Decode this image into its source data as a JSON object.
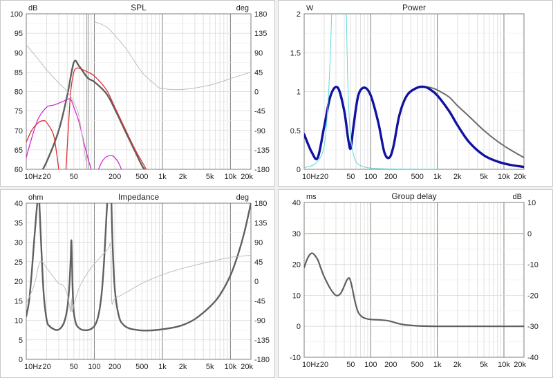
{
  "chart_data": [
    {
      "type": "line",
      "title": "SPL",
      "xscale": "log",
      "xlim": [
        10,
        20000
      ],
      "x_ticks": [
        10,
        20,
        50,
        100,
        200,
        500,
        1000,
        2000,
        5000,
        10000,
        20000
      ],
      "x_tick_labels": [
        "10Hz",
        "20",
        "50",
        "",
        "200",
        "500",
        "1k",
        "2k",
        "5k",
        "10k",
        "20k"
      ],
      "y_unit": "dB",
      "ylim": [
        60,
        100
      ],
      "y_ticks": [
        60,
        65,
        70,
        75,
        80,
        85,
        90,
        95,
        100
      ],
      "y_tick_labels": [
        "60",
        "65",
        "70",
        "75",
        "80",
        "85",
        "90",
        "95",
        "100"
      ],
      "y2_unit": "deg",
      "y2lim": [
        -180,
        180
      ],
      "y2_ticks": [
        -180,
        -135,
        -90,
        -45,
        0,
        45,
        90,
        135,
        180
      ],
      "y2_tick_labels": [
        "-180",
        "-135",
        "-90",
        "-45",
        "0",
        "45",
        "90",
        "135",
        "180"
      ],
      "marker_line_x": 80,
      "grid": true,
      "series": [
        {
          "color": "#606060",
          "width": 2.4,
          "axis": "y",
          "x": [
            15,
            20,
            30,
            40,
            50,
            60,
            80,
            100,
            150,
            200,
            300,
            400,
            500,
            600
          ],
          "y": [
            58,
            62,
            70,
            79,
            87.5,
            86.5,
            83.5,
            82.5,
            79.5,
            75.5,
            69,
            64.5,
            61,
            59
          ]
        },
        {
          "color": "#d93030",
          "width": 1.3,
          "axis": "y",
          "x": [
            38,
            42,
            45,
            50,
            55,
            60,
            70,
            80,
            100,
            150,
            200,
            300,
            400,
            500,
            600
          ],
          "y": [
            59,
            72,
            80,
            85,
            86,
            86,
            85.5,
            85,
            84,
            80.5,
            76,
            69.5,
            65,
            62,
            59.5
          ]
        },
        {
          "color": "#d93030",
          "width": 1.3,
          "axis": "y",
          "x": [
            10,
            12,
            15,
            18,
            20,
            25,
            28,
            30
          ],
          "y": [
            67,
            70,
            72,
            72.5,
            72,
            69,
            64,
            60
          ]
        },
        {
          "color": "#d428d4",
          "width": 1.3,
          "axis": "y",
          "x": [
            10,
            12,
            15,
            20,
            25,
            30,
            35,
            40,
            45,
            50,
            60,
            70,
            80,
            90
          ],
          "y": [
            63,
            68,
            73,
            76,
            76.5,
            77,
            77.5,
            78,
            78,
            76,
            72,
            67,
            63,
            60
          ]
        },
        {
          "color": "#d428d4",
          "width": 1.3,
          "axis": "y",
          "x": [
            115,
            130,
            150,
            180,
            200,
            230,
            250
          ],
          "y": [
            60,
            62,
            63.2,
            63.5,
            63,
            61.5,
            60
          ]
        },
        {
          "color": "#bdbdbd",
          "width": 1.0,
          "axis": "y2",
          "x": [
            10,
            15,
            20,
            30,
            40,
            50,
            60,
            75
          ],
          "y2": [
            108,
            75,
            50,
            20,
            0,
            -25,
            -60,
            -160
          ]
        },
        {
          "color": "#bdbdbd",
          "width": 1.0,
          "axis": "y2",
          "x": [
            100,
            150,
            200,
            300,
            500,
            800,
            1000,
            2000,
            5000,
            10000,
            20000
          ],
          "y2": [
            162,
            150,
            130,
            97,
            45,
            15,
            7,
            5,
            15,
            30,
            45
          ]
        }
      ]
    },
    {
      "type": "line",
      "title": "Power",
      "xscale": "log",
      "xlim": [
        10,
        20000
      ],
      "x_ticks": [
        10,
        20,
        50,
        100,
        200,
        500,
        1000,
        2000,
        5000,
        10000,
        20000
      ],
      "x_tick_labels": [
        "10Hz",
        "20",
        "50",
        "100",
        "200",
        "500",
        "1k",
        "2k",
        "5k",
        "10k",
        "20k"
      ],
      "y_unit": "W",
      "ylim": [
        0,
        2
      ],
      "y_ticks": [
        0,
        0.5,
        1,
        1.5,
        2
      ],
      "y_tick_labels": [
        "0",
        "0.5",
        "1",
        "1.5",
        "2"
      ],
      "grid": true,
      "series": [
        {
          "color": "#6b6b6b",
          "width": 2.0,
          "axis": "y",
          "x": [
            10,
            13,
            16,
            20,
            25,
            32,
            40,
            46,
            50,
            55,
            65,
            80,
            100,
            130,
            160,
            190,
            220,
            270,
            350,
            500,
            650,
            800,
            1000,
            1500,
            2000,
            3000,
            5000,
            8000,
            12000,
            20000
          ],
          "y": [
            0.45,
            0.22,
            0.15,
            0.55,
            0.95,
            1.05,
            0.75,
            0.38,
            0.27,
            0.55,
            0.95,
            1.05,
            0.95,
            0.6,
            0.22,
            0.15,
            0.3,
            0.7,
            0.95,
            1.05,
            1.06,
            1.05,
            1.02,
            0.93,
            0.82,
            0.68,
            0.5,
            0.36,
            0.26,
            0.15
          ]
        },
        {
          "color": "#1212a0",
          "width": 3.4,
          "axis": "y",
          "x": [
            10,
            13,
            16,
            20,
            25,
            32,
            40,
            46,
            50,
            55,
            65,
            80,
            100,
            130,
            160,
            190,
            220,
            270,
            350,
            500,
            650,
            800,
            1000,
            1500,
            2000,
            3000,
            5000,
            8000,
            12000,
            20000
          ],
          "y": [
            0.45,
            0.22,
            0.15,
            0.55,
            0.95,
            1.05,
            0.75,
            0.38,
            0.27,
            0.55,
            0.95,
            1.05,
            0.95,
            0.6,
            0.22,
            0.15,
            0.3,
            0.7,
            0.95,
            1.05,
            1.06,
            1.02,
            0.95,
            0.75,
            0.57,
            0.35,
            0.18,
            0.1,
            0.06,
            0.03
          ]
        },
        {
          "color": "#5ed8d8",
          "width": 1.0,
          "axis": "y",
          "x": [
            10,
            15,
            20,
            23,
            25,
            26
          ],
          "y": [
            0.02,
            0.08,
            0.3,
            0.9,
            1.6,
            2.05
          ]
        },
        {
          "color": "#5ed8d8",
          "width": 1.0,
          "axis": "y",
          "x": [
            43,
            45,
            48,
            52,
            60,
            80,
            120,
            200,
            400,
            1000
          ],
          "y": [
            2.05,
            1.2,
            0.6,
            0.3,
            0.1,
            0.03,
            0.01,
            0.005,
            0.002,
            0.001
          ]
        }
      ]
    },
    {
      "type": "line",
      "title": "Impedance",
      "xscale": "log",
      "xlim": [
        10,
        20000
      ],
      "x_ticks": [
        10,
        20,
        50,
        100,
        200,
        500,
        1000,
        2000,
        5000,
        10000,
        20000
      ],
      "x_tick_labels": [
        "10Hz",
        "20",
        "50",
        "100",
        "200",
        "500",
        "1k",
        "2k",
        "5k",
        "10k",
        "20k"
      ],
      "y_unit": "ohm",
      "ylim": [
        0,
        40
      ],
      "y_ticks": [
        0,
        5,
        10,
        15,
        20,
        25,
        30,
        35,
        40
      ],
      "y_tick_labels": [
        "0",
        "5",
        "10",
        "15",
        "20",
        "25",
        "30",
        "35",
        "40"
      ],
      "y2_unit": "deg",
      "y2lim": [
        -180,
        180
      ],
      "y2_ticks": [
        -180,
        -135,
        -90,
        -45,
        0,
        45,
        90,
        135,
        180
      ],
      "y2_tick_labels": [
        "-180",
        "-135",
        "-90",
        "-45",
        "0",
        "45",
        "90",
        "135",
        "180"
      ],
      "grid": true,
      "series": [
        {
          "color": "#606060",
          "width": 2.4,
          "axis": "y",
          "x": [
            10,
            11,
            12,
            13,
            14,
            14.7
          ],
          "y": [
            11,
            15,
            22,
            30,
            37,
            41
          ]
        },
        {
          "color": "#606060",
          "width": 2.4,
          "axis": "y",
          "x": [
            15.5,
            16.5,
            18,
            20,
            22,
            25,
            28,
            32,
            36,
            40,
            43,
            45,
            46,
            47,
            48,
            50,
            53,
            56,
            60,
            65,
            70,
            80,
            90,
            100,
            110,
            120,
            130,
            140,
            150,
            155,
            160
          ],
          "y": [
            41,
            30,
            17,
            10,
            8.5,
            7.8,
            7.5,
            8,
            9.5,
            13,
            19,
            26,
            30.5,
            25,
            18,
            12,
            9.5,
            8.5,
            8,
            7.6,
            7.5,
            7.5,
            7.8,
            8.5,
            10,
            13,
            18,
            26,
            36,
            40,
            41
          ]
        },
        {
          "color": "#606060",
          "width": 2.4,
          "axis": "y",
          "x": [
            178,
            185,
            200,
            230,
            270,
            330,
            400,
            500,
            650,
            800,
            1000,
            1500,
            2000,
            3000,
            5000,
            7000,
            10000,
            13000,
            16000,
            20000
          ],
          "y": [
            41,
            30,
            18,
            11,
            8.8,
            7.9,
            7.6,
            7.4,
            7.4,
            7.5,
            7.7,
            8.2,
            8.8,
            10.3,
            13.5,
            16.5,
            21.5,
            27,
            32.5,
            40
          ]
        },
        {
          "color": "#bdbdbd",
          "width": 1.0,
          "axis": "y2",
          "x": [
            10,
            13,
            16,
            20,
            25,
            30,
            35,
            40,
            43,
            45,
            46,
            47,
            50,
            60,
            80,
            100,
            130,
            160,
            175,
            180,
            200,
            300,
            500,
            1000,
            2000,
            5000,
            10000,
            20000
          ],
          "y2": [
            -50,
            -10,
            45,
            30,
            10,
            -5,
            -10,
            -30,
            -55,
            -70,
            -40,
            -70,
            -55,
            -15,
            20,
            40,
            60,
            75,
            80,
            -45,
            -40,
            -25,
            -5,
            15,
            30,
            45,
            55,
            60
          ]
        }
      ]
    },
    {
      "type": "line",
      "title": "Group delay",
      "xscale": "log",
      "xlim": [
        10,
        20000
      ],
      "x_ticks": [
        10,
        20,
        50,
        100,
        200,
        500,
        1000,
        2000,
        5000,
        10000,
        20000
      ],
      "x_tick_labels": [
        "10Hz",
        "20",
        "50",
        "100",
        "200",
        "500",
        "1k",
        "2k",
        "5k",
        "10k",
        "20k"
      ],
      "y_unit": "ms",
      "ylim": [
        -10,
        40
      ],
      "y_ticks": [
        -10,
        0,
        10,
        20,
        30,
        40
      ],
      "y_tick_labels": [
        "-10",
        "0",
        "10",
        "20",
        "30",
        "40"
      ],
      "y2_unit": "dB",
      "y2lim": [
        -40,
        10
      ],
      "y2_ticks": [
        -40,
        -30,
        -20,
        -10,
        0,
        10
      ],
      "y2_tick_labels": [
        "-40",
        "-30",
        "-20",
        "-10",
        "0",
        "10"
      ],
      "grid": true,
      "series": [
        {
          "color": "#606060",
          "width": 2.2,
          "axis": "y",
          "x": [
            10,
            11,
            12,
            13,
            14,
            16,
            18,
            20,
            25,
            30,
            35,
            40,
            44,
            48,
            52,
            58,
            65,
            75,
            85,
            100,
            130,
            170,
            200,
            300,
            500,
            700,
            1000,
            2000,
            5000,
            20000
          ],
          "y": [
            19,
            21.5,
            23,
            23.6,
            23.3,
            21.5,
            18.5,
            16,
            12,
            10,
            10.5,
            13,
            15,
            15.5,
            13,
            8,
            4.5,
            3,
            2.5,
            2.2,
            2.1,
            1.9,
            1.6,
            0.6,
            0.15,
            0.05,
            0,
            0,
            0,
            0
          ]
        },
        {
          "color": "#e2b05a",
          "width": 1.3,
          "axis": "y2",
          "x": [
            10,
            20000
          ],
          "y2": [
            0,
            0
          ]
        }
      ]
    }
  ]
}
